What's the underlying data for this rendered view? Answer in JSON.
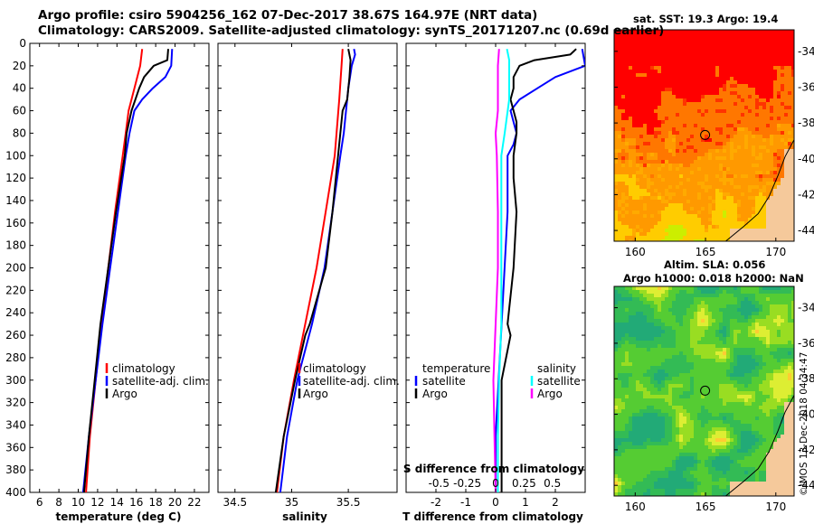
{
  "title_line1": "Argo profile: csiro 5904256_162 07-Dec-2017 38.67S 164.97E (NRT data)",
  "title_line2": "Climatology: CARS2009. Satellite-adjusted climatology: synTS_20171207.nc (0.69d earlier)",
  "sst_map_title": "sat. SST: 19.3 Argo: 19.4",
  "sla_map_title_line1": "Altim. SLA: 0.056",
  "sla_map_title_line2": "Argo h1000: 0.018 h2000: NaN",
  "credit": "©IMOS 13-Dec-2018 04:34:47",
  "colors": {
    "climatology": "#ff0000",
    "satellite": "#0000ff",
    "argo": "#000000",
    "sal_satellite": "#00ffff",
    "sal_argo": "#ff00ff"
  },
  "maps": {
    "lon_ticks": [
      "160",
      "165",
      "170"
    ],
    "lat_ticks": [
      "-34",
      "-36",
      "-38",
      "-40",
      "-42",
      "-44"
    ],
    "argo_position": {
      "lon": 164.97,
      "lat": -38.67
    }
  },
  "chart_data": [
    {
      "type": "line",
      "name": "temperature-profile",
      "xlabel": "temperature (deg C)",
      "ylabel": "",
      "xlim": [
        5,
        23.5
      ],
      "ylim": [
        400,
        0
      ],
      "x_ticks": [
        6,
        8,
        10,
        12,
        14,
        16,
        18,
        20,
        22
      ],
      "y_ticks": [
        0,
        20,
        40,
        60,
        80,
        100,
        120,
        140,
        160,
        180,
        200,
        220,
        240,
        260,
        280,
        300,
        320,
        340,
        360,
        380,
        400
      ],
      "legend": {
        "position": "bottom-right",
        "entries": [
          "climatology",
          "satellite-adj. clim.",
          "Argo"
        ]
      },
      "series": [
        {
          "name": "climatology",
          "color": "red",
          "depth": [
            5,
            20,
            40,
            60,
            80,
            100,
            150,
            200,
            250,
            300,
            350,
            400
          ],
          "values": [
            16.6,
            16.4,
            15.8,
            15.2,
            14.9,
            14.6,
            13.8,
            13.1,
            12.4,
            11.8,
            11.2,
            10.8
          ]
        },
        {
          "name": "satellite-adj. clim.",
          "color": "blue",
          "depth": [
            5,
            20,
            30,
            40,
            50,
            60,
            80,
            100,
            150,
            200,
            250,
            300,
            350,
            400
          ],
          "values": [
            19.7,
            19.6,
            19.0,
            17.7,
            16.6,
            15.8,
            15.3,
            14.9,
            14.1,
            13.3,
            12.5,
            11.8,
            11.1,
            10.5
          ]
        },
        {
          "name": "Argo",
          "color": "black",
          "depth": [
            5,
            15,
            20,
            30,
            40,
            50,
            60,
            80,
            100,
            150,
            200,
            250,
            300,
            350,
            400
          ],
          "values": [
            19.3,
            19.2,
            17.8,
            16.8,
            16.3,
            15.9,
            15.5,
            15.0,
            14.8,
            13.9,
            13.1,
            12.3,
            11.7,
            11.1,
            10.6
          ]
        }
      ]
    },
    {
      "type": "line",
      "name": "salinity-profile",
      "xlabel": "salinity",
      "ylabel": "",
      "xlim": [
        34.35,
        35.93
      ],
      "ylim": [
        400,
        0
      ],
      "x_ticks": [
        34.5,
        35,
        35.5
      ],
      "legend": {
        "position": "bottom-left",
        "entries": [
          "climatology",
          "satellite-adj. clim.",
          "Argo"
        ]
      },
      "series": [
        {
          "name": "climatology",
          "color": "red",
          "depth": [
            5,
            20,
            50,
            100,
            150,
            200,
            250,
            300,
            350,
            400
          ],
          "values": [
            35.45,
            35.44,
            35.42,
            35.38,
            35.3,
            35.22,
            35.12,
            35.02,
            34.93,
            34.87
          ]
        },
        {
          "name": "satellite-adj. clim.",
          "color": "blue",
          "depth": [
            5,
            10,
            20,
            40,
            60,
            80,
            100,
            150,
            200,
            250,
            300,
            350,
            400
          ],
          "values": [
            35.55,
            35.56,
            35.53,
            35.5,
            35.48,
            35.46,
            35.43,
            35.36,
            35.29,
            35.18,
            35.05,
            34.96,
            34.9
          ]
        },
        {
          "name": "Argo",
          "color": "black",
          "depth": [
            5,
            15,
            30,
            50,
            60,
            80,
            100,
            150,
            200,
            250,
            260,
            300,
            350,
            400
          ],
          "values": [
            35.5,
            35.52,
            35.51,
            35.49,
            35.45,
            35.43,
            35.41,
            35.36,
            35.3,
            35.16,
            35.12,
            35.03,
            34.93,
            34.86
          ]
        }
      ]
    },
    {
      "type": "line",
      "name": "difference-profile",
      "xlabel": "T difference from climatology",
      "xlabel2": "S difference from climatology",
      "ylabel": "",
      "xlim": [
        -3,
        3
      ],
      "ylim": [
        400,
        0
      ],
      "x_ticks": [
        -2,
        -1,
        0,
        1,
        2
      ],
      "x_ticks_salinity": [
        -0.5,
        -0.25,
        0,
        0.25,
        0.5
      ],
      "x_ticks_salinity_labels": [
        "-0.5",
        "-0.25",
        "0",
        "0.25",
        "0.5"
      ],
      "legend_temperature": {
        "title": "temperature",
        "entries": [
          "satellite",
          "Argo"
        ]
      },
      "legend_salinity": {
        "title": "salinity",
        "entries": [
          "satellite",
          "Argo"
        ]
      },
      "series": [
        {
          "name": "temperature satellite",
          "color": "blue",
          "depth": [
            5,
            20,
            30,
            40,
            50,
            60,
            70,
            80,
            90,
            100,
            150,
            200,
            250,
            300,
            350,
            400
          ],
          "values": [
            2.9,
            3.0,
            2.0,
            1.4,
            0.8,
            0.5,
            0.6,
            0.7,
            0.6,
            0.4,
            0.4,
            0.3,
            0.2,
            0.1,
            0.0,
            0.0
          ]
        },
        {
          "name": "temperature Argo",
          "color": "black",
          "depth": [
            5,
            10,
            15,
            20,
            30,
            40,
            50,
            60,
            70,
            80,
            100,
            120,
            150,
            200,
            250,
            260,
            300,
            350,
            400
          ],
          "values": [
            2.7,
            2.5,
            1.3,
            0.8,
            0.6,
            0.6,
            0.5,
            0.6,
            0.7,
            0.7,
            0.6,
            0.6,
            0.7,
            0.6,
            0.4,
            0.5,
            0.2,
            0.2,
            0.2
          ]
        },
        {
          "name": "salinity satellite",
          "color": "cyan",
          "depth": [
            5,
            15,
            30,
            50,
            80,
            100,
            150,
            200,
            250,
            300,
            350,
            400
          ],
          "values": [
            0.1,
            0.12,
            0.12,
            0.12,
            0.08,
            0.05,
            0.05,
            0.05,
            0.05,
            0.03,
            0.02,
            0.02
          ]
        },
        {
          "name": "salinity Argo",
          "color": "magenta",
          "depth": [
            5,
            20,
            40,
            60,
            80,
            100,
            150,
            200,
            250,
            300,
            350,
            400
          ],
          "values": [
            0.03,
            0.02,
            0.02,
            0.02,
            0.0,
            0.01,
            0.02,
            0.02,
            0.0,
            -0.02,
            -0.01,
            0.0
          ]
        }
      ]
    }
  ]
}
